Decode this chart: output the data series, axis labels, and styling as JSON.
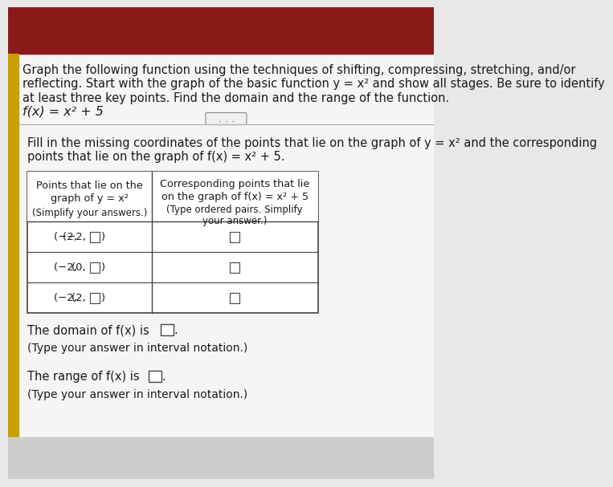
{
  "title_text": "Graph the following function using the techniques of shifting, compressing, stretching, and/or\nreflecting. Start with the graph of the basic function y = x² and show all stages. Be sure to identify\nat least three key points. Find the domain and the range of the function.",
  "function_label": "f(x) = x² + 5",
  "fill_in_text": "Fill in the missing coordinates of the points that lie on the graph of y = x² and the corresponding\npoints that lie on the graph of f(x) = x² + 5.",
  "col1_header_line1": "Points that lie on the",
  "col1_header_line2": "graph of y = x²",
  "col1_header_line3": "(Simplify your answers.)",
  "col2_header_line1": "Corresponding points that lie",
  "col2_header_line2": "on the graph of f(x) = x² + 5",
  "col2_header_line3": "(Type ordered pairs. Simplify",
  "col2_header_line4": "your answer.)",
  "row1_col1": "(−2,□)",
  "row2_col1": "(0,□)",
  "row3_col1": "(2,□)",
  "domain_text": "The domain of f(x) is",
  "domain_notation_hint": "(Type your answer in interval notation.)",
  "range_text": "The range of f(x) is",
  "range_notation_hint": "(Type your answer in interval notation.)",
  "bg_color_top": "#8b1a1a",
  "bg_color_main": "#f0f0f0",
  "left_bar_color": "#c8a000",
  "text_color": "#1a1a1a",
  "border_color": "#555555",
  "dots_color": "#555555",
  "font_size_body": 10.5,
  "font_size_function": 11.5,
  "font_size_table": 9.5
}
